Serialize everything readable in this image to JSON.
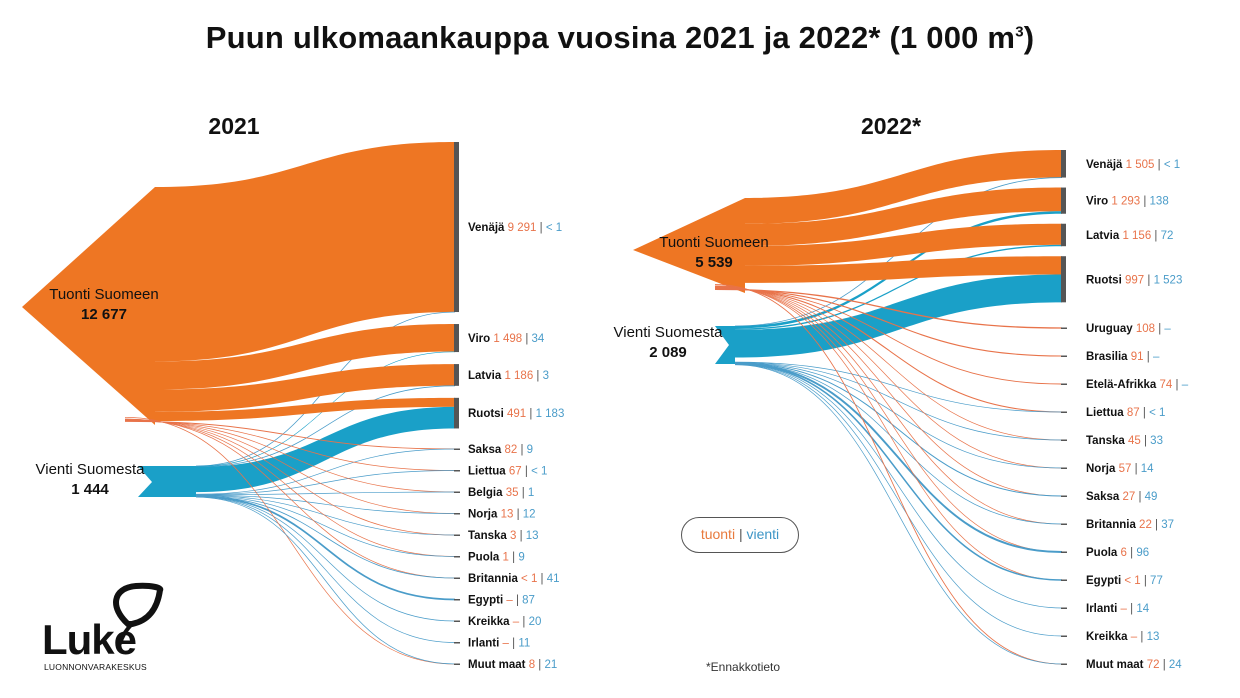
{
  "title": "Puun ulkomaankauppa vuosina 2021 ja 2022* (1 000 m",
  "title_sup": "3",
  "title_close": ")",
  "legend": {
    "tuonti": "tuonti",
    "sep": "|",
    "vienti": "vienti"
  },
  "note": "*Ennakkotieto",
  "logo": {
    "name": "Luke",
    "subtitle": "LUONNONVARAKESKUS"
  },
  "colors": {
    "import": "#ee7623",
    "export": "#1aa0c8",
    "import_line": "#e8734a",
    "export_line": "#4a9cc9"
  },
  "chart_data": [
    {
      "type": "sankey",
      "title": "2021",
      "units": "1 000 m3",
      "sources": [
        {
          "label": "Tuonti Suomeen",
          "value": "12 677"
        },
        {
          "label": "Vienti Suomesta",
          "value": "1 444"
        }
      ],
      "countries": [
        {
          "name": "Venäjä",
          "tuonti": "9 291",
          "vienti": "< 1"
        },
        {
          "name": "Viro",
          "tuonti": "1 498",
          "vienti": "34"
        },
        {
          "name": "Latvia",
          "tuonti": "1 186",
          "vienti": "3"
        },
        {
          "name": "Ruotsi",
          "tuonti": "491",
          "vienti": "1 183"
        },
        {
          "name": "Saksa",
          "tuonti": "82",
          "vienti": "9"
        },
        {
          "name": "Liettua",
          "tuonti": "67",
          "vienti": "< 1"
        },
        {
          "name": "Belgia",
          "tuonti": "35",
          "vienti": "1"
        },
        {
          "name": "Norja",
          "tuonti": "13",
          "vienti": "12"
        },
        {
          "name": "Tanska",
          "tuonti": "3",
          "vienti": "13"
        },
        {
          "name": "Puola",
          "tuonti": "1",
          "vienti": "9"
        },
        {
          "name": "Britannia",
          "tuonti": "< 1",
          "vienti": "41"
        },
        {
          "name": "Egypti",
          "tuonti": "–",
          "vienti": "87"
        },
        {
          "name": "Kreikka",
          "tuonti": "–",
          "vienti": "20"
        },
        {
          "name": "Irlanti",
          "tuonti": "–",
          "vienti": "11"
        },
        {
          "name": "Muut maat",
          "tuonti": "8",
          "vienti": "21"
        }
      ]
    },
    {
      "type": "sankey",
      "title": "2022*",
      "units": "1 000 m3",
      "sources": [
        {
          "label": "Tuonti Suomeen",
          "value": "5 539"
        },
        {
          "label": "Vienti Suomesta",
          "value": "2 089"
        }
      ],
      "countries": [
        {
          "name": "Venäjä",
          "tuonti": "1 505",
          "vienti": "< 1"
        },
        {
          "name": "Viro",
          "tuonti": "1 293",
          "vienti": "138"
        },
        {
          "name": "Latvia",
          "tuonti": "1 156",
          "vienti": "72"
        },
        {
          "name": "Ruotsi",
          "tuonti": "997",
          "vienti": "1 523"
        },
        {
          "name": "Uruguay",
          "tuonti": "108",
          "vienti": "–"
        },
        {
          "name": "Brasilia",
          "tuonti": "91",
          "vienti": "–"
        },
        {
          "name": "Etelä-Afrikka",
          "tuonti": "74",
          "vienti": "–"
        },
        {
          "name": "Liettua",
          "tuonti": "87",
          "vienti": "< 1"
        },
        {
          "name": "Tanska",
          "tuonti": "45",
          "vienti": "33"
        },
        {
          "name": "Norja",
          "tuonti": "57",
          "vienti": "14"
        },
        {
          "name": "Saksa",
          "tuonti": "27",
          "vienti": "49"
        },
        {
          "name": "Britannia",
          "tuonti": "22",
          "vienti": "37"
        },
        {
          "name": "Puola",
          "tuonti": "6",
          "vienti": "96"
        },
        {
          "name": "Egypti",
          "tuonti": "< 1",
          "vienti": "77"
        },
        {
          "name": "Irlanti",
          "tuonti": "–",
          "vienti": "14"
        },
        {
          "name": "Kreikka",
          "tuonti": "–",
          "vienti": "13"
        },
        {
          "name": "Muut maat",
          "tuonti": "72",
          "vienti": "24"
        }
      ]
    }
  ]
}
